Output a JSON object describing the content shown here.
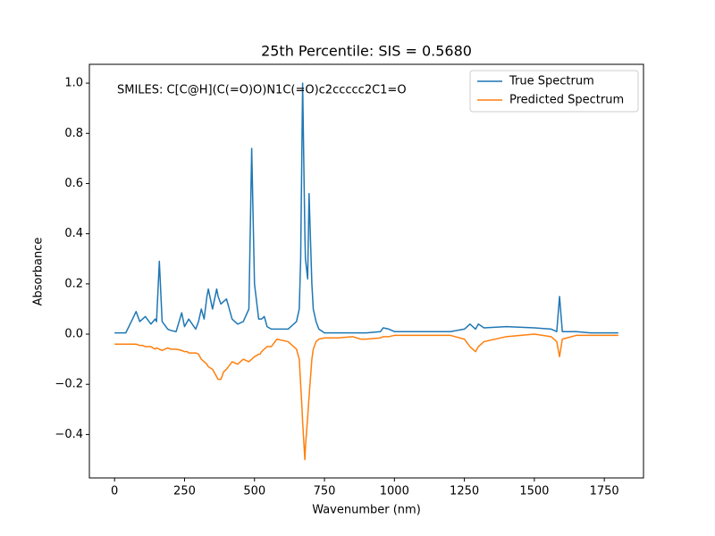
{
  "chart_data": {
    "type": "line",
    "title": "25th Percentile: SIS = 0.5680",
    "annotation": "SMILES: C[C@H](C(=O)O)N1C(=O)c2ccccc2C1=O",
    "xlabel": "Wavenumber (nm)",
    "ylabel": "Absorbance",
    "x": [
      0,
      40,
      60,
      77,
      90,
      100,
      110,
      130,
      145,
      150,
      160,
      170,
      190,
      200,
      220,
      240,
      250,
      260,
      265,
      290,
      300,
      310,
      320,
      330,
      335,
      350,
      365,
      370,
      380,
      390,
      400,
      420,
      440,
      460,
      480,
      490,
      500,
      515,
      520,
      525,
      535,
      545,
      560,
      580,
      620,
      640,
      650,
      660,
      665,
      670,
      672,
      680,
      682,
      690,
      695,
      705,
      710,
      720,
      730,
      750,
      800,
      850,
      880,
      900,
      950,
      960,
      980,
      1000,
      1200,
      1250,
      1270,
      1290,
      1300,
      1320,
      1400,
      1500,
      1560,
      1580,
      1590,
      1600,
      1650,
      1700,
      1800
    ],
    "series": [
      {
        "name": "True Spectrum",
        "color": "#1f77b4",
        "values": [
          0.005,
          0.005,
          0.05,
          0.09,
          0.05,
          0.06,
          0.07,
          0.04,
          0.06,
          0.05,
          0.29,
          0.05,
          0.02,
          0.015,
          0.01,
          0.085,
          0.03,
          0.05,
          0.06,
          0.02,
          0.05,
          0.1,
          0.06,
          0.15,
          0.18,
          0.1,
          0.18,
          0.15,
          0.12,
          0.13,
          0.14,
          0.06,
          0.04,
          0.05,
          0.1,
          0.74,
          0.2,
          0.06,
          0.06,
          0.06,
          0.07,
          0.03,
          0.02,
          0.02,
          0.02,
          0.04,
          0.05,
          0.1,
          0.3,
          0.8,
          1.0,
          0.4,
          0.3,
          0.22,
          0.56,
          0.2,
          0.1,
          0.05,
          0.02,
          0.005,
          0.005,
          0.005,
          0.005,
          0.005,
          0.01,
          0.025,
          0.02,
          0.01,
          0.01,
          0.02,
          0.04,
          0.02,
          0.04,
          0.025,
          0.03,
          0.025,
          0.02,
          0.01,
          0.15,
          0.01,
          0.01,
          0.005,
          0.005
        ]
      },
      {
        "name": "Predicted Spectrum",
        "color": "#ff7f0e",
        "values": [
          -0.04,
          -0.04,
          -0.04,
          -0.04,
          -0.045,
          -0.045,
          -0.05,
          -0.05,
          -0.06,
          -0.055,
          -0.06,
          -0.065,
          -0.055,
          -0.06,
          -0.06,
          -0.065,
          -0.07,
          -0.07,
          -0.075,
          -0.075,
          -0.08,
          -0.1,
          -0.11,
          -0.12,
          -0.13,
          -0.14,
          -0.17,
          -0.18,
          -0.18,
          -0.15,
          -0.14,
          -0.11,
          -0.12,
          -0.1,
          -0.11,
          -0.1,
          -0.09,
          -0.08,
          -0.08,
          -0.07,
          -0.06,
          -0.05,
          -0.05,
          -0.02,
          -0.03,
          -0.05,
          -0.06,
          -0.1,
          -0.2,
          -0.3,
          -0.35,
          -0.5,
          -0.45,
          -0.33,
          -0.25,
          -0.1,
          -0.06,
          -0.03,
          -0.02,
          -0.015,
          -0.015,
          -0.01,
          -0.02,
          -0.02,
          -0.015,
          -0.01,
          -0.01,
          -0.005,
          -0.005,
          -0.02,
          -0.05,
          -0.07,
          -0.05,
          -0.03,
          -0.01,
          0,
          -0.01,
          -0.03,
          -0.09,
          -0.02,
          -0.005,
          -0.005,
          -0.005
        ]
      }
    ],
    "xlim": [
      -90,
      1890
    ],
    "ylim": [
      -0.573,
      1.075
    ],
    "xticks": [
      0,
      250,
      500,
      750,
      1000,
      1250,
      1500,
      1750
    ],
    "yticks": [
      {
        "value": -0.4,
        "label": "−0.4"
      },
      {
        "value": -0.2,
        "label": "−0.2"
      },
      {
        "value": 0,
        "label": "0.0"
      },
      0.2,
      0.4,
      0.6,
      0.8,
      {
        "value": 1,
        "label": "1.0"
      }
    ],
    "legend": "upper right"
  }
}
